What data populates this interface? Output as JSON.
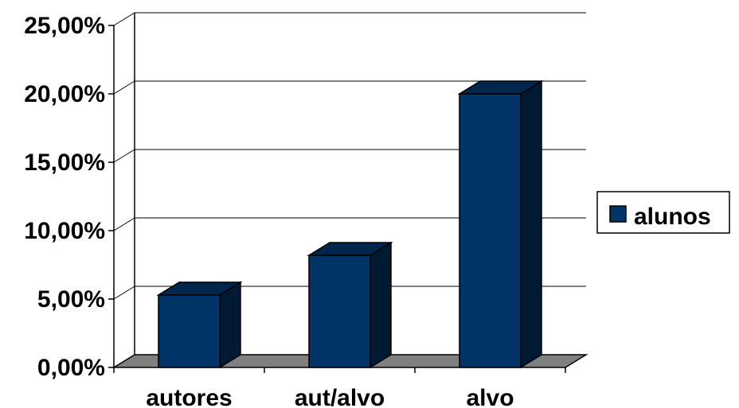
{
  "chart_data": {
    "type": "bar",
    "categories": [
      "autores",
      "aut/alvo",
      "alvo"
    ],
    "series": [
      {
        "name": "alunos",
        "values": [
          5.3,
          8.2,
          20.0
        ]
      }
    ],
    "yticks": [
      "0,00%",
      "5,00%",
      "10,00%",
      "15,00%",
      "20,00%",
      "25,00%"
    ],
    "ylim": [
      0,
      25
    ],
    "grid": true,
    "legend": "right",
    "colors": {
      "bar_front": "#003366",
      "bar_top": "#00264d",
      "bar_side": "#001a33",
      "floor": "#808080",
      "gridline": "#000000"
    }
  }
}
